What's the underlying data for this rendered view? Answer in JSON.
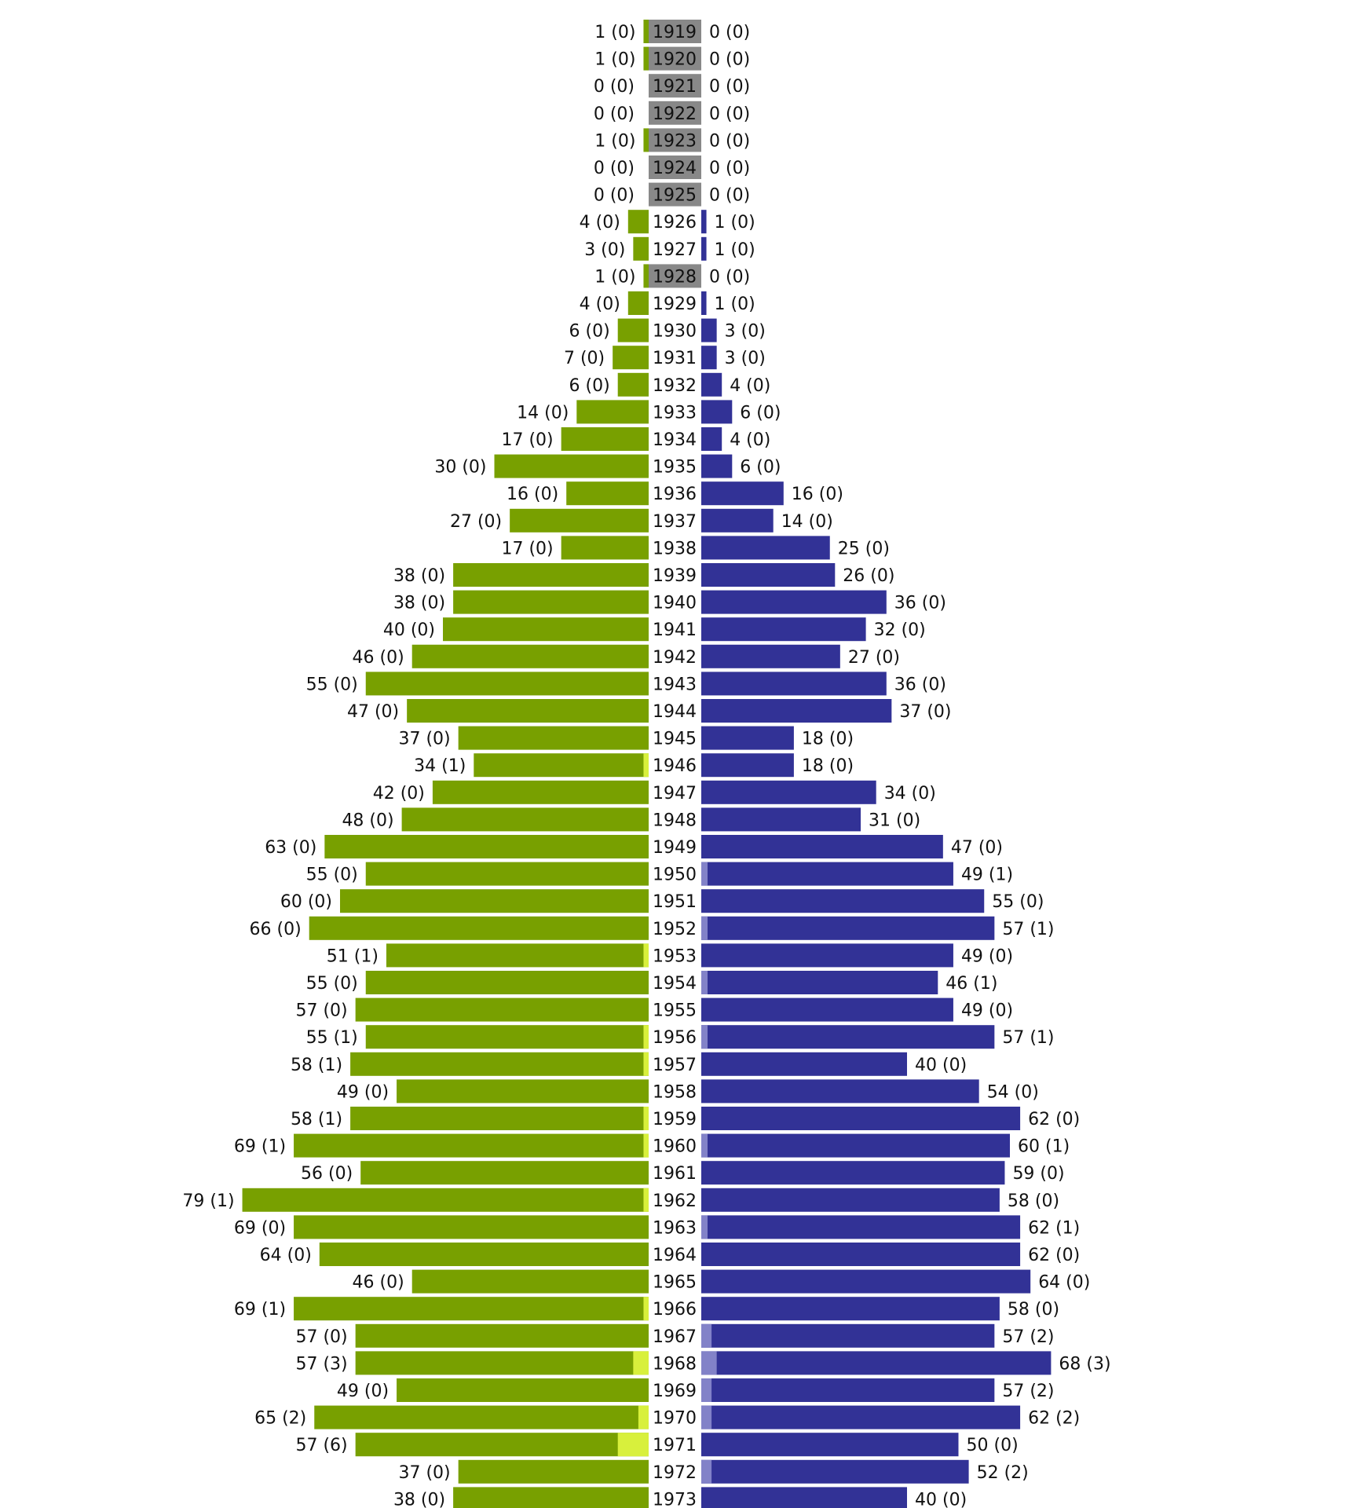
{
  "chart_data": {
    "type": "bar",
    "title": "",
    "xlabel": "",
    "ylabel": "",
    "categories": [
      "1919",
      "1920",
      "1921",
      "1922",
      "1923",
      "1924",
      "1925",
      "1926",
      "1927",
      "1928",
      "1929",
      "1930",
      "1931",
      "1932",
      "1933",
      "1934",
      "1935",
      "1936",
      "1937",
      "1938",
      "1939",
      "1940",
      "1941",
      "1942",
      "1943",
      "1944",
      "1945",
      "1946",
      "1947",
      "1948",
      "1949",
      "1950",
      "1951",
      "1952",
      "1953",
      "1954",
      "1955",
      "1956",
      "1957",
      "1958",
      "1959",
      "1960",
      "1961",
      "1962",
      "1963",
      "1964",
      "1965",
      "1966",
      "1967",
      "1968",
      "1969",
      "1970",
      "1971",
      "1972",
      "1973"
    ],
    "series": [
      {
        "side": "left",
        "values": [
          1,
          1,
          0,
          0,
          1,
          0,
          0,
          4,
          3,
          1,
          4,
          6,
          7,
          6,
          14,
          17,
          30,
          16,
          27,
          17,
          38,
          38,
          40,
          46,
          55,
          47,
          37,
          34,
          42,
          48,
          63,
          55,
          60,
          66,
          51,
          55,
          57,
          55,
          58,
          49,
          58,
          69,
          56,
          79,
          69,
          64,
          46,
          69,
          57,
          57,
          49,
          65,
          57,
          37,
          38
        ],
        "sub_values": [
          0,
          0,
          0,
          0,
          0,
          0,
          0,
          0,
          0,
          0,
          0,
          0,
          0,
          0,
          0,
          0,
          0,
          0,
          0,
          0,
          0,
          0,
          0,
          0,
          0,
          0,
          0,
          1,
          0,
          0,
          0,
          0,
          0,
          0,
          1,
          0,
          0,
          1,
          1,
          0,
          1,
          1,
          0,
          1,
          0,
          0,
          0,
          1,
          0,
          3,
          0,
          2,
          6,
          0,
          0
        ],
        "color": "#78a000",
        "sub_color": "#d8f03c"
      },
      {
        "side": "right",
        "values": [
          0,
          0,
          0,
          0,
          0,
          0,
          0,
          1,
          1,
          0,
          1,
          3,
          3,
          4,
          6,
          4,
          6,
          16,
          14,
          25,
          26,
          36,
          32,
          27,
          36,
          37,
          18,
          18,
          34,
          31,
          47,
          49,
          55,
          57,
          49,
          46,
          49,
          57,
          40,
          54,
          62,
          60,
          59,
          58,
          62,
          62,
          64,
          58,
          57,
          68,
          57,
          62,
          50,
          52,
          40
        ],
        "sub_values": [
          0,
          0,
          0,
          0,
          0,
          0,
          0,
          0,
          0,
          0,
          0,
          0,
          0,
          0,
          0,
          0,
          0,
          0,
          0,
          0,
          0,
          0,
          0,
          0,
          0,
          0,
          0,
          0,
          0,
          0,
          0,
          1,
          0,
          1,
          0,
          1,
          0,
          1,
          0,
          0,
          0,
          1,
          0,
          0,
          1,
          0,
          0,
          0,
          2,
          3,
          2,
          2,
          0,
          2,
          0
        ],
        "color": "#323296",
        "sub_color": "#8282c8"
      }
    ],
    "empty_color": "#888888",
    "grid": false,
    "legend": "none"
  }
}
